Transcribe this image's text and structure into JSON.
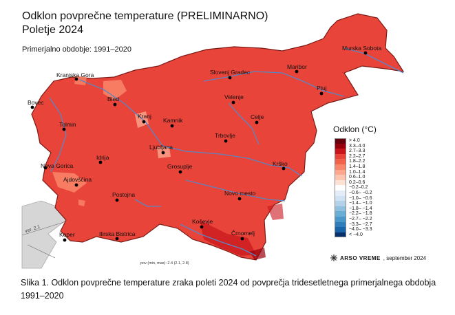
{
  "map": {
    "title_line1": "Odklon povprečne temperature (PRELIMINARNO)",
    "title_line2": "Poletje 2024",
    "subtitle": "Primerjalno obdobje: 1991–2020",
    "version_label": "ver. 2.1",
    "footnote": "pov (min, max): 2.4 (2.1, 2.8)",
    "fill_color": "#e8443a",
    "border_color": "#7a1b16",
    "river_color": "#5a86c4",
    "cities": [
      "Murska Sobota",
      "Kranjska Gora",
      "Slovenj Gradec",
      "Maribor",
      "Ptuj",
      "Bovec",
      "Bled",
      "Velenje",
      "Kranj",
      "Celje",
      "Kamnik",
      "Tolmin",
      "Trbovlje",
      "Ljubljana",
      "Idrija",
      "Nova Gorica",
      "Grosuplje",
      "Krško",
      "Ajdovščina",
      "Novo mesto",
      "Postojna",
      "Kočevje",
      "Koper",
      "Ilirska Bistrica",
      "Črnomelj"
    ]
  },
  "legend": {
    "title": "Odklon (°C)",
    "classes": [
      {
        "label": "> 4.0",
        "color": "#67000d"
      },
      {
        "label": "3.3–4.0",
        "color": "#99000d"
      },
      {
        "label": "2.7–3.3",
        "color": "#c8141b"
      },
      {
        "label": "2.2–2.7",
        "color": "#e8443a"
      },
      {
        "label": "1.8–2.2",
        "color": "#f2624a"
      },
      {
        "label": "1.4–1.8",
        "color": "#f9866a"
      },
      {
        "label": "1.0–1.4",
        "color": "#fca78e"
      },
      {
        "label": "0.6–1.0",
        "color": "#fdc5b0"
      },
      {
        "label": "0.2–0.6",
        "color": "#fee2d6"
      },
      {
        "label": "−0.2–0.2",
        "color": "#ffffff"
      },
      {
        "label": "−0.6– −0.2",
        "color": "#e4eef8"
      },
      {
        "label": "−1.0– −0.6",
        "color": "#cfe1f2"
      },
      {
        "label": "−1.4– −1.0",
        "color": "#b3d2e9"
      },
      {
        "label": "−1.8– −1.4",
        "color": "#8fc1de"
      },
      {
        "label": "−2.2– −1.8",
        "color": "#6aaed6"
      },
      {
        "label": "−2.7– −2.2",
        "color": "#4a98c9"
      },
      {
        "label": "−3.3– −2.7",
        "color": "#2e7ebc"
      },
      {
        "label": "−4.0– −3.3",
        "color": "#1764ab"
      },
      {
        "label": "< −4.0",
        "color": "#08306b"
      }
    ]
  },
  "credit": {
    "brand": "ARSO VREME",
    "date": ", september 2024"
  },
  "caption": "Slika 1. Odklon povprečne temperature zraka poleti 2024 od povprečja tridesetletnega primerjalnega obdobja 1991–2020"
}
